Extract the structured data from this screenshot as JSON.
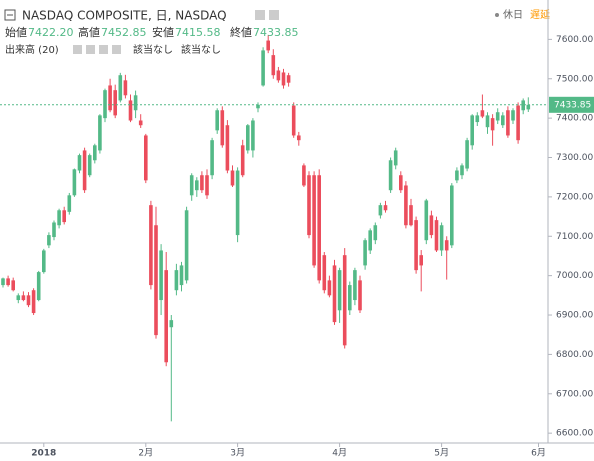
{
  "chart_data": {
    "type": "candlestick",
    "title": "NASDAQ COMPOSITE, 日, NASDAQ",
    "header": {
      "open_label": "始値",
      "open_value": "7422.20",
      "high_label": "高値",
      "high_value": "7452.85",
      "low_label": "安値",
      "low_value": "7415.58",
      "close_label": "終値",
      "close_value": "7433.85"
    },
    "volume_label": "出来高 (20)",
    "volume_na_1": "該当なし",
    "volume_na_2": "該当なし",
    "status_holiday": "休日",
    "status_delay": "遅延",
    "last_price_label": "7433.85",
    "up_color": "#53b987",
    "down_color": "#eb4d5c",
    "categories": [
      null,
      null,
      null,
      null,
      null,
      null,
      null,
      null,
      null,
      null,
      null,
      null,
      null,
      null,
      null,
      null,
      null,
      null,
      null,
      null,
      null,
      null,
      null,
      null,
      null,
      null,
      null,
      null,
      null,
      null,
      null,
      null,
      null,
      null,
      null,
      null,
      null,
      null,
      null,
      null,
      null,
      null,
      null,
      null,
      null,
      null,
      null,
      null,
      null,
      null,
      null,
      null,
      null,
      null,
      null,
      null,
      null,
      null,
      null,
      null,
      null,
      null,
      null,
      null,
      null,
      null,
      null,
      null,
      null,
      null,
      null,
      null,
      null,
      null,
      null,
      null,
      null,
      null,
      null,
      null,
      null,
      null,
      null,
      null,
      null,
      null,
      null,
      null,
      null,
      null,
      null,
      null,
      null,
      null,
      null,
      null,
      null,
      null,
      null,
      null,
      null,
      null,
      null,
      null
    ],
    "open": [
      6976,
      6993,
      6988,
      6938,
      6950,
      6950,
      6963,
      6938,
      7009,
      7077,
      7098,
      7128,
      7166,
      7162,
      7204,
      7267,
      7318,
      7255,
      7293,
      7318,
      7400,
      7483,
      7471,
      7445,
      7496,
      7445,
      7420,
      7394,
      7356,
      7179,
      7128,
      6938,
      7014,
      6869,
      6963,
      6976,
      6988,
      7204,
      7217,
      7255,
      7255,
      7255,
      7369,
      7420,
      7382,
      7267,
      7103,
      7331,
      7318,
      7318,
      7425,
      7483,
      7597,
      7560,
      7521,
      7516,
      7509,
      7432,
      7356,
      7280,
      7255,
      7255,
      7255,
      7052,
      6988,
      7026,
      6912,
      7052,
      6912,
      6938,
      6988,
      7026,
      7064,
      7090,
      7153,
      7179,
      7217,
      7280,
      7255,
      7229,
      7179,
      7141,
      7052,
      7090,
      7153,
      7141,
      7064,
      7090,
      7077,
      7242,
      7255,
      7272,
      7331,
      7390,
      7420,
      7377,
      7400,
      7394,
      7382,
      7420,
      7394,
      7432,
      7420,
      7422.2
    ],
    "high": [
      6995,
      7000,
      6995,
      6955,
      6960,
      6958,
      6968,
      7012,
      7068,
      7110,
      7140,
      7170,
      7175,
      7210,
      7272,
      7310,
      7325,
      7310,
      7335,
      7410,
      7475,
      7500,
      7485,
      7515,
      7510,
      7460,
      7470,
      7410,
      7360,
      7190,
      7175,
      7080,
      7060,
      6900,
      7030,
      7035,
      7175,
      7260,
      7250,
      7265,
      7270,
      7350,
      7425,
      7430,
      7395,
      7280,
      7275,
      7345,
      7385,
      7400,
      7440,
      7580,
      7610,
      7575,
      7530,
      7525,
      7515,
      7440,
      7365,
      7285,
      7265,
      7265,
      7270,
      7060,
      7000,
      7040,
      7020,
      7070,
      6985,
      7020,
      7000,
      7095,
      7120,
      7135,
      7185,
      7190,
      7300,
      7325,
      7265,
      7240,
      7195,
      7150,
      7065,
      7195,
      7165,
      7150,
      7135,
      7100,
      7235,
      7275,
      7285,
      7350,
      7410,
      7415,
      7460,
      7415,
      7410,
      7425,
      7415,
      7430,
      7425,
      7440,
      7450,
      7452.85
    ],
    "low": [
      6970,
      6972,
      6960,
      6930,
      6935,
      6920,
      6900,
      6935,
      7005,
      7070,
      7090,
      7120,
      7130,
      7155,
      7200,
      7260,
      7210,
      7250,
      7285,
      7310,
      7390,
      7415,
      7400,
      7440,
      7450,
      7390,
      7400,
      7375,
      7235,
      6965,
      6840,
      6900,
      6770,
      6630,
      6950,
      6960,
      6980,
      7190,
      7200,
      7210,
      7195,
      7245,
      7360,
      7325,
      7260,
      7225,
      7085,
      7250,
      7310,
      7300,
      7415,
      7480,
      7565,
      7500,
      7490,
      7475,
      7480,
      7350,
      7330,
      7225,
      7095,
      7020,
      6980,
      6955,
      6945,
      6875,
      6880,
      6815,
      6900,
      6925,
      6905,
      7015,
      7055,
      7080,
      7145,
      7160,
      7210,
      7270,
      7210,
      7120,
      7125,
      7005,
      6960,
      7080,
      7095,
      7060,
      7050,
      6990,
      7070,
      7235,
      7245,
      7265,
      7320,
      7380,
      7400,
      7360,
      7330,
      7385,
      7375,
      7350,
      7385,
      7335,
      7410,
      7415.58
    ],
    "close": [
      6993,
      6976,
      6963,
      6950,
      6938,
      6925,
      6905,
      7009,
      7064,
      7103,
      7135,
      7166,
      7136,
      7204,
      7270,
      7306,
      7217,
      7306,
      7331,
      7407,
      7471,
      7420,
      7407,
      7509,
      7458,
      7394,
      7458,
      7382,
      7242,
      6976,
      6849,
      7064,
      6780,
      6887,
      7014,
      7026,
      7166,
      7255,
      7242,
      7217,
      7204,
      7344,
      7420,
      7331,
      7267,
      7229,
      7267,
      7255,
      7382,
      7394,
      7434,
      7572,
      7572,
      7509,
      7496,
      7483,
      7490,
      7356,
      7344,
      7229,
      7103,
      7026,
      6988,
      6963,
      6950,
      6882,
      7014,
      6823,
      6976,
      7014,
      6912,
      7090,
      7115,
      7128,
      7179,
      7166,
      7293,
      7318,
      7217,
      7128,
      7128,
      7014,
      7026,
      7191,
      7103,
      7064,
      7128,
      7064,
      7229,
      7267,
      7280,
      7344,
      7407,
      7407,
      7404,
      7407,
      7369,
      7415,
      7407,
      7356,
      7420,
      7344,
      7445,
      7433.85
    ],
    "ylim": [
      6575,
      7700
    ],
    "yticks": [
      {
        "value": 6600,
        "label": "6600.00"
      },
      {
        "value": 6700,
        "label": "6700.00"
      },
      {
        "value": 6800,
        "label": "6800.00"
      },
      {
        "value": 6900,
        "label": "6900.00"
      },
      {
        "value": 7000,
        "label": "7000.00"
      },
      {
        "value": 7100,
        "label": "7100.00"
      },
      {
        "value": 7200,
        "label": "7200.00"
      },
      {
        "value": 7300,
        "label": "7300.00"
      },
      {
        "value": 7400,
        "label": "7400.00"
      },
      {
        "value": 7500,
        "label": "7500.00"
      },
      {
        "value": 7600,
        "label": "7600.00"
      }
    ],
    "xticks": [
      {
        "value": 8,
        "label": "2018"
      },
      {
        "value": 28,
        "label": "2月"
      },
      {
        "value": 46,
        "label": "3月"
      },
      {
        "value": 66,
        "label": "4月"
      },
      {
        "value": 86,
        "label": "5月"
      },
      {
        "value": 105,
        "label": "6月"
      }
    ],
    "grid": false
  }
}
